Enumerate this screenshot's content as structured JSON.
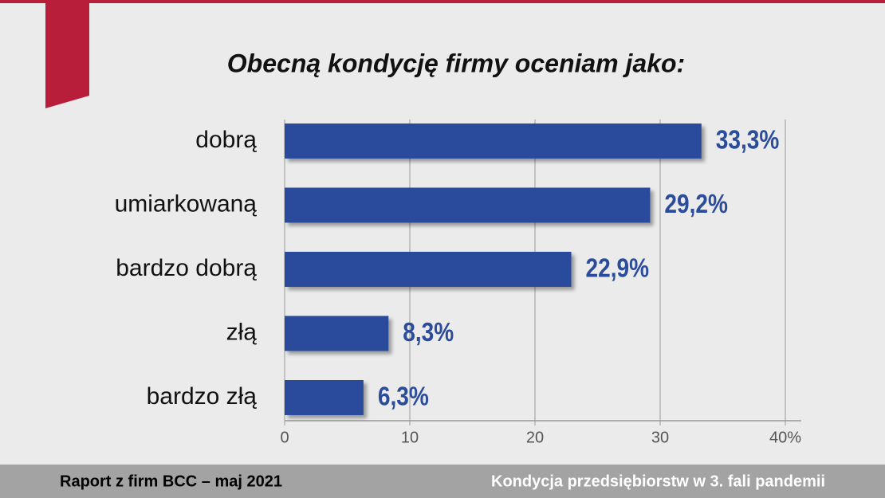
{
  "chart_data": {
    "type": "bar",
    "orientation": "horizontal",
    "title": "Obecną kondycję firmy oceniam jako:",
    "categories": [
      "dobrą",
      "umiarkowaną",
      "bardzo dobrą",
      "złą",
      "bardzo złą"
    ],
    "values": [
      33.3,
      29.2,
      22.9,
      8.3,
      6.3
    ],
    "value_labels": [
      "33,3%",
      "29,2%",
      "22,9%",
      "8,3%",
      "6,3%"
    ],
    "color": "#2b4c9b",
    "xlim": [
      0,
      40
    ],
    "xticks": [
      0,
      10,
      20,
      30,
      {
        "value": 40,
        "label": "40%"
      }
    ],
    "grid": true
  },
  "footer": {
    "left": "Raport z firm BCC – maj 2021",
    "right": "Kondycja przedsiębiorstw w 3. fali pandemii"
  }
}
